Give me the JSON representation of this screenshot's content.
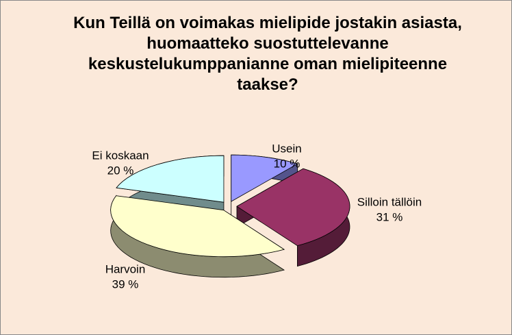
{
  "chart_data": {
    "type": "pie",
    "title": "Kun Teillä on voimakas mielipide jostakin asiasta, huomaatteko suostuttelevanne keskustelukumppanianne oman mielipiteenne taakse?",
    "categories": [
      "Usein",
      "Silloin tällöin",
      "Harvoin",
      "Ei koskaan"
    ],
    "values": [
      10,
      31,
      39,
      20
    ],
    "value_labels": [
      "10 %",
      "31 %",
      "39 %",
      "20 %"
    ],
    "colors": [
      "#9999ff",
      "#993366",
      "#ffffcc",
      "#ccffff"
    ]
  }
}
